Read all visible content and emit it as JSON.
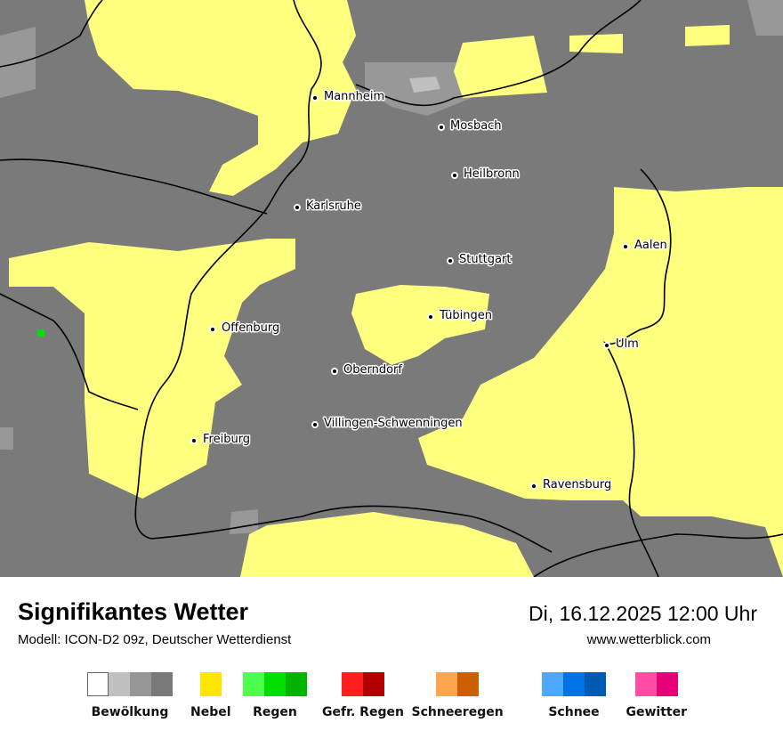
{
  "title": "Signifikantes Wetter",
  "model": "Modell: ICON-D2 09z, Deutscher Wetterdienst",
  "datetime": "Di, 16.12.2025 12:00 Uhr",
  "website": "www.wetterblick.com",
  "map": {
    "colors": {
      "cloud": "#7a7a7a",
      "cloud_light": "#989898",
      "cloud_lighter": "#c0c0c0",
      "fog": "#ffff7f",
      "rain": "#00e000",
      "border": "#000000"
    },
    "cities": [
      "Mannheim",
      "Mosbach",
      "Heilbronn",
      "Karlsruhe",
      "Aalen",
      "Stuttgart",
      "Tübingen",
      "Offenburg",
      "Ulm",
      "Oberndorf",
      "Villingen-Schwenningen",
      "Freiburg",
      "Ravensburg"
    ]
  },
  "legend": [
    {
      "label": "Bewölkung",
      "colors": [
        "#ffffff",
        "#c0c0c0",
        "#969696",
        "#787878"
      ]
    },
    {
      "label": "Nebel",
      "colors": [
        "#ffe600"
      ]
    },
    {
      "label": "Regen",
      "colors": [
        "#4dff4d",
        "#00e000",
        "#00b400"
      ]
    },
    {
      "label": "Gefr. Regen",
      "colors": [
        "#ff1e1e",
        "#b40000"
      ]
    },
    {
      "label": "Schneeregen",
      "colors": [
        "#ffa54d",
        "#cc5f00"
      ]
    },
    {
      "label": "Schnee",
      "colors": [
        "#4da6ff",
        "#0073e6",
        "#0059b3"
      ]
    },
    {
      "label": "Gewitter",
      "colors": [
        "#ff4da6",
        "#e6007a"
      ]
    }
  ]
}
